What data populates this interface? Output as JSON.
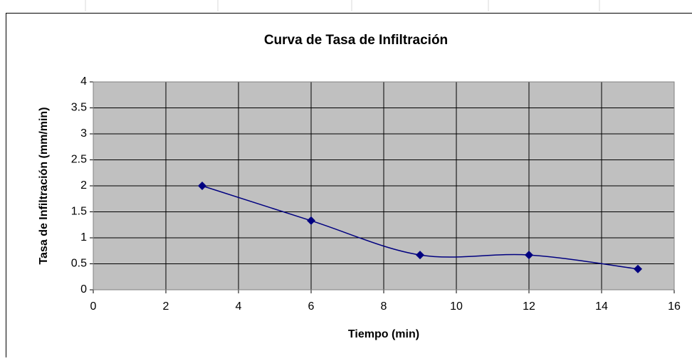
{
  "chart_data": {
    "type": "scatter",
    "title": "Curva de Tasa de Infiltración",
    "x_label": "Tiempo (min)",
    "y_label": "Tasa de Infiltración (mm/min)",
    "series": [
      {
        "color": "#000080",
        "x": [
          3,
          6,
          9,
          12,
          15
        ],
        "values": [
          2,
          1.33,
          0.67,
          0.67,
          0.4
        ]
      }
    ],
    "xlim": [
      0,
      16
    ],
    "xticks": [
      0,
      2,
      4,
      6,
      8,
      10,
      12,
      14,
      16
    ],
    "ylim": [
      0,
      4
    ],
    "yticks": [
      0,
      0.5,
      1,
      1.5,
      2,
      2.5,
      3,
      3.5,
      4
    ],
    "grid": true,
    "smooth": true
  }
}
